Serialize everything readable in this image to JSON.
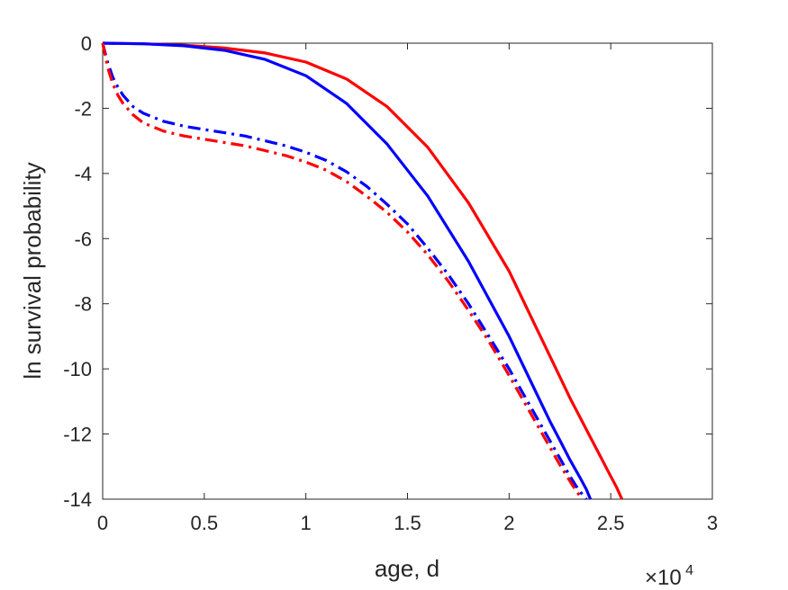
{
  "chart_data": {
    "type": "line",
    "title": "",
    "xlabel": "age, d",
    "ylabel": "ln survival probability",
    "x_exponent_base": "×10",
    "x_exponent_power": "4",
    "xlim": [
      0,
      30000
    ],
    "ylim": [
      -14,
      0
    ],
    "xticks": [
      0,
      5000,
      10000,
      15000,
      20000,
      25000,
      30000
    ],
    "xtick_labels": [
      "0",
      "0.5",
      "1",
      "1.5",
      "2",
      "2.5",
      "3"
    ],
    "yticks": [
      0,
      -2,
      -4,
      -6,
      -8,
      -10,
      -12,
      -14
    ],
    "ytick_labels": [
      "0",
      "-2",
      "-4",
      "-6",
      "-8",
      "-10",
      "-12",
      "-14"
    ],
    "grid": false,
    "legend": "none",
    "series": [
      {
        "color": "#ff0000",
        "style": "solid",
        "x": [
          0,
          2000,
          4000,
          6000,
          8000,
          10000,
          12000,
          14000,
          16000,
          18000,
          20000,
          22000,
          23000,
          24000,
          24500,
          25000,
          25300,
          25550
        ],
        "y": [
          0,
          -0.02,
          -0.06,
          -0.15,
          -0.3,
          -0.58,
          -1.1,
          -1.95,
          -3.2,
          -4.9,
          -7.0,
          -9.6,
          -10.9,
          -12.1,
          -12.7,
          -13.3,
          -13.65,
          -14.0
        ]
      },
      {
        "color": "#0000ff",
        "style": "solid",
        "x": [
          0,
          2000,
          4000,
          6000,
          8000,
          10000,
          12000,
          14000,
          16000,
          18000,
          20000,
          21000,
          22000,
          22500,
          23000,
          23500,
          23800,
          24000
        ],
        "y": [
          0,
          -0.02,
          -0.08,
          -0.22,
          -0.5,
          -1.0,
          -1.85,
          -3.1,
          -4.7,
          -6.7,
          -9.0,
          -10.3,
          -11.6,
          -12.2,
          -12.8,
          -13.35,
          -13.7,
          -14.0
        ]
      },
      {
        "color": "#0000ff",
        "style": "dashdot",
        "x": [
          0,
          250,
          500,
          750,
          1000,
          1500,
          2000,
          3000,
          4000,
          5000,
          6000,
          7000,
          8000,
          9000,
          10000,
          11000,
          12000,
          13000,
          14000,
          15000,
          16000,
          17000,
          18000,
          19000,
          20000,
          21000,
          22000,
          22500,
          23000,
          23400,
          23800
        ],
        "y": [
          0,
          -0.6,
          -1.05,
          -1.35,
          -1.6,
          -1.95,
          -2.15,
          -2.4,
          -2.55,
          -2.65,
          -2.75,
          -2.85,
          -3.0,
          -3.15,
          -3.35,
          -3.6,
          -3.95,
          -4.4,
          -4.95,
          -5.55,
          -6.3,
          -7.1,
          -8.0,
          -9.0,
          -10.0,
          -11.1,
          -12.2,
          -12.75,
          -13.3,
          -13.7,
          -14.0
        ]
      },
      {
        "color": "#ff0000",
        "style": "dashdot",
        "x": [
          0,
          250,
          500,
          750,
          1000,
          1500,
          2000,
          3000,
          4000,
          5000,
          6000,
          7000,
          8000,
          9000,
          10000,
          11000,
          12000,
          13000,
          14000,
          15000,
          16000,
          17000,
          18000,
          19000,
          20000,
          21000,
          22000,
          22500,
          23000,
          23300,
          23600
        ],
        "y": [
          0,
          -0.75,
          -1.25,
          -1.6,
          -1.85,
          -2.2,
          -2.45,
          -2.7,
          -2.85,
          -2.95,
          -3.05,
          -3.15,
          -3.3,
          -3.45,
          -3.65,
          -3.9,
          -4.25,
          -4.7,
          -5.2,
          -5.8,
          -6.5,
          -7.3,
          -8.2,
          -9.15,
          -10.2,
          -11.3,
          -12.4,
          -12.95,
          -13.45,
          -13.75,
          -14.0
        ]
      }
    ]
  }
}
